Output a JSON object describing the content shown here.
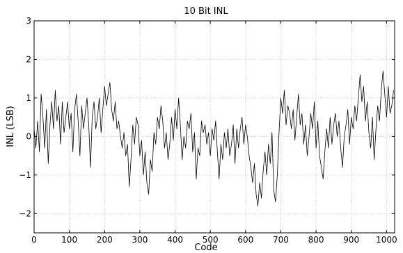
{
  "chart_data": {
    "type": "line",
    "title": "10 Bit INL",
    "xlabel": "Code",
    "ylabel": "INL (LSB)",
    "xlim": [
      0,
      1023
    ],
    "ylim": [
      -2.5,
      3
    ],
    "x_ticks": [
      0,
      100,
      200,
      300,
      400,
      500,
      600,
      700,
      800,
      900,
      1000
    ],
    "x_tick_labels": [
      "0",
      "100",
      "200",
      "300",
      "400",
      "500",
      "600",
      "700",
      "800",
      "900",
      "1000"
    ],
    "y_ticks": [
      -2,
      -1,
      0,
      1,
      2,
      3
    ],
    "y_tick_labels": [
      "−2",
      "−1",
      "0",
      "1",
      "2",
      "3"
    ],
    "grid": true,
    "line_color": "#000000",
    "series": [
      {
        "x": [
          0,
          5,
          10,
          15,
          20,
          25,
          30,
          35,
          40,
          45,
          50,
          55,
          60,
          65,
          70,
          75,
          80,
          85,
          90,
          95,
          100,
          105,
          110,
          115,
          120,
          125,
          130,
          135,
          140,
          145,
          150,
          155,
          160,
          165,
          170,
          175,
          180,
          185,
          190,
          195,
          200,
          205,
          210,
          215,
          220,
          225,
          230,
          235,
          240,
          245,
          250,
          255,
          260,
          265,
          270,
          275,
          280,
          285,
          290,
          295,
          300,
          305,
          310,
          315,
          320,
          325,
          330,
          335,
          340,
          345,
          350,
          355,
          360,
          365,
          370,
          375,
          380,
          385,
          390,
          395,
          400,
          405,
          410,
          415,
          420,
          425,
          430,
          435,
          440,
          445,
          450,
          455,
          460,
          465,
          470,
          475,
          480,
          485,
          490,
          495,
          500,
          505,
          510,
          515,
          520,
          525,
          530,
          535,
          540,
          545,
          550,
          555,
          560,
          565,
          570,
          575,
          580,
          585,
          590,
          595,
          600,
          605,
          610,
          615,
          620,
          625,
          630,
          635,
          640,
          645,
          650,
          655,
          660,
          665,
          670,
          675,
          680,
          685,
          690,
          695,
          700,
          705,
          710,
          715,
          720,
          725,
          730,
          735,
          740,
          745,
          750,
          755,
          760,
          765,
          770,
          775,
          780,
          785,
          790,
          795,
          800,
          805,
          810,
          815,
          820,
          825,
          830,
          835,
          840,
          845,
          850,
          855,
          860,
          865,
          870,
          875,
          880,
          885,
          890,
          895,
          900,
          905,
          910,
          915,
          920,
          925,
          930,
          935,
          940,
          945,
          950,
          955,
          960,
          965,
          970,
          975,
          980,
          985,
          990,
          995,
          1000,
          1005,
          1010,
          1015,
          1020
        ],
        "y": [
          0.2,
          -0.3,
          0.4,
          -0.4,
          1.1,
          0.5,
          -0.3,
          0.7,
          -0.7,
          0.3,
          0.9,
          0.2,
          1.2,
          0.4,
          0.8,
          -0.2,
          0.9,
          0.1,
          0.5,
          0.9,
          0.2,
          0.6,
          -0.4,
          0.7,
          1.1,
          0.4,
          -0.5,
          0.8,
          0.2,
          0.6,
          1.0,
          0.3,
          -0.8,
          0.5,
          0.9,
          0.2,
          0.5,
          1.0,
          0.1,
          0.7,
          1.3,
          0.8,
          1.1,
          1.4,
          0.7,
          0.4,
          0.9,
          0.2,
          0.4,
          0.0,
          -0.3,
          0.1,
          -0.5,
          -0.2,
          -1.3,
          -0.6,
          0.3,
          -0.2,
          0.5,
          0.3,
          -0.5,
          -0.1,
          -1.0,
          -0.4,
          -1.2,
          -1.5,
          -0.6,
          -0.9,
          0.1,
          -0.2,
          0.5,
          0.2,
          0.8,
          0.4,
          -0.3,
          0.1,
          -0.6,
          -0.2,
          0.5,
          -0.1,
          0.7,
          0.2,
          1.0,
          0.3,
          -0.6,
          0.0,
          -0.3,
          0.4,
          0.2,
          0.6,
          -0.4,
          0.1,
          -1.1,
          -0.3,
          -0.5,
          0.4,
          0.1,
          0.3,
          -0.2,
          0.1,
          -0.5,
          0.2,
          -0.1,
          0.4,
          -0.4,
          -1.1,
          -0.2,
          -0.6,
          0.1,
          -0.3,
          0.2,
          -0.5,
          -0.2,
          0.3,
          -0.7,
          0.2,
          -0.3,
          0.2,
          0.5,
          -0.2,
          0.3,
          0.0,
          -0.5,
          -0.8,
          -1.2,
          -0.7,
          -1.5,
          -1.8,
          -1.2,
          -1.6,
          -0.9,
          -0.4,
          -1.0,
          -0.2,
          -0.7,
          0.1,
          -1.4,
          -1.7,
          -1.0,
          0.1,
          1.0,
          0.6,
          1.2,
          0.3,
          0.8,
          0.6,
          0.2,
          0.7,
          -0.1,
          0.5,
          1.1,
          0.3,
          0.6,
          -0.2,
          0.3,
          -0.5,
          0.0,
          0.6,
          0.2,
          0.9,
          -0.3,
          0.4,
          -0.5,
          -0.8,
          -1.1,
          -0.4,
          0.2,
          -0.3,
          0.5,
          -0.2,
          0.3,
          0.6,
          0.0,
          0.4,
          -0.3,
          -0.8,
          0.0,
          0.3,
          0.7,
          -0.2,
          0.5,
          0.2,
          0.8,
          0.4,
          1.0,
          1.6,
          0.9,
          1.3,
          0.4,
          0.9,
          0.1,
          -0.3,
          0.5,
          -0.6,
          0.2,
          0.8,
          0.4,
          1.2,
          1.7,
          1.1,
          0.5,
          1.3,
          0.6,
          0.8,
          1.2
        ]
      }
    ]
  }
}
